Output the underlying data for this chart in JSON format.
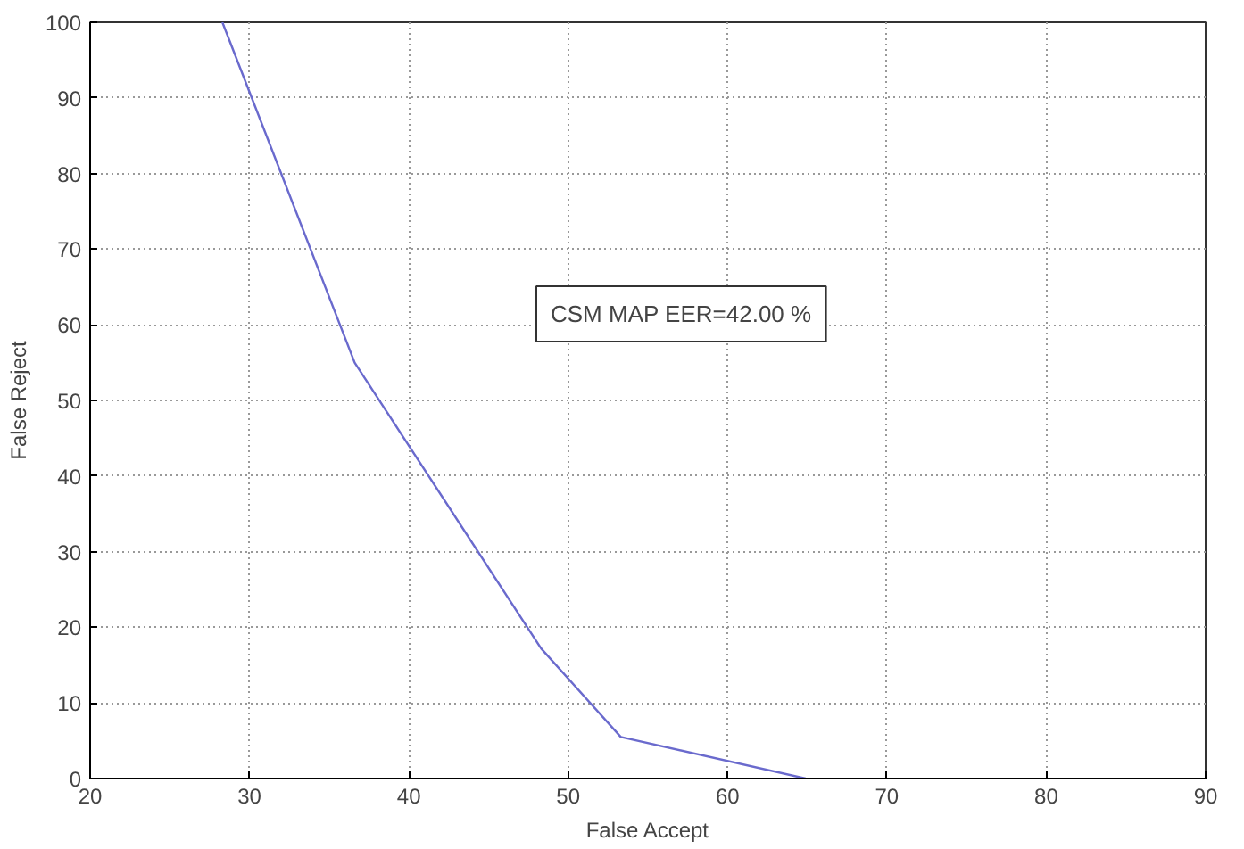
{
  "chart_data": {
    "type": "line",
    "xlabel": "False Accept",
    "ylabel": "False Reject",
    "x": [
      28.3,
      36.6,
      48.3,
      53.3,
      64.9
    ],
    "series": [
      {
        "color": "#6a6acd",
        "values": [
          100,
          55,
          17.2,
          5.5,
          0
        ]
      }
    ],
    "xlim": [
      20,
      90
    ],
    "ylim": [
      0,
      100
    ],
    "xticks": [
      20,
      30,
      40,
      50,
      60,
      70,
      80,
      90
    ],
    "yticks": [
      0,
      10,
      20,
      30,
      40,
      50,
      60,
      70,
      80,
      90,
      100
    ],
    "grid": true,
    "line_style": "solid",
    "annotations": [
      "CSM MAP EER=42.00 %"
    ]
  }
}
